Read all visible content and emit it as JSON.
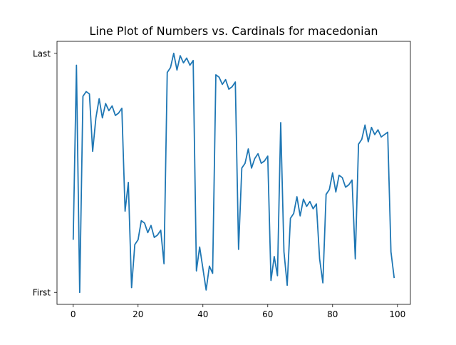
{
  "chart_data": {
    "type": "line",
    "title": "Line Plot of Numbers vs. Cardinals for macedonian",
    "xlabel": "",
    "ylabel": "",
    "xlim": [
      -5,
      104
    ],
    "ylim": [
      -0.05,
      1.05
    ],
    "grid": false,
    "x_ticks": [
      0,
      20,
      40,
      60,
      80,
      100
    ],
    "y_ticks": [
      {
        "value": 0,
        "label": "First"
      },
      {
        "value": 1,
        "label": "Last"
      }
    ],
    "line_color": "#1f77b4",
    "x": [
      0,
      1,
      2,
      3,
      4,
      5,
      6,
      7,
      8,
      9,
      10,
      11,
      12,
      13,
      14,
      15,
      16,
      17,
      18,
      19,
      20,
      21,
      22,
      23,
      24,
      25,
      26,
      27,
      28,
      29,
      30,
      31,
      32,
      33,
      34,
      35,
      36,
      37,
      38,
      39,
      40,
      41,
      42,
      43,
      44,
      45,
      46,
      47,
      48,
      49,
      50,
      51,
      52,
      53,
      54,
      55,
      56,
      57,
      58,
      59,
      60,
      61,
      62,
      63,
      64,
      65,
      66,
      67,
      68,
      69,
      70,
      71,
      72,
      73,
      74,
      75,
      76,
      77,
      78,
      79,
      80,
      81,
      82,
      83,
      84,
      85,
      86,
      87,
      88,
      89,
      90,
      91,
      92,
      93,
      94,
      95,
      96,
      97,
      98,
      99
    ],
    "values": [
      0.22,
      0.95,
      0.0,
      0.82,
      0.84,
      0.83,
      0.59,
      0.73,
      0.81,
      0.73,
      0.79,
      0.76,
      0.78,
      0.74,
      0.75,
      0.77,
      0.34,
      0.46,
      0.02,
      0.2,
      0.22,
      0.3,
      0.29,
      0.25,
      0.28,
      0.23,
      0.24,
      0.26,
      0.12,
      0.92,
      0.94,
      1.0,
      0.93,
      0.99,
      0.96,
      0.98,
      0.95,
      0.97,
      0.09,
      0.19,
      0.1,
      0.01,
      0.11,
      0.08,
      0.91,
      0.9,
      0.87,
      0.89,
      0.85,
      0.86,
      0.88,
      0.18,
      0.52,
      0.54,
      0.6,
      0.52,
      0.56,
      0.58,
      0.54,
      0.55,
      0.57,
      0.05,
      0.15,
      0.07,
      0.71,
      0.17,
      0.03,
      0.31,
      0.33,
      0.4,
      0.32,
      0.39,
      0.36,
      0.38,
      0.35,
      0.37,
      0.14,
      0.04,
      0.41,
      0.43,
      0.5,
      0.42,
      0.49,
      0.48,
      0.44,
      0.45,
      0.47,
      0.14,
      0.62,
      0.64,
      0.7,
      0.63,
      0.69,
      0.66,
      0.68,
      0.65,
      0.66,
      0.67,
      0.17,
      0.06
    ]
  }
}
